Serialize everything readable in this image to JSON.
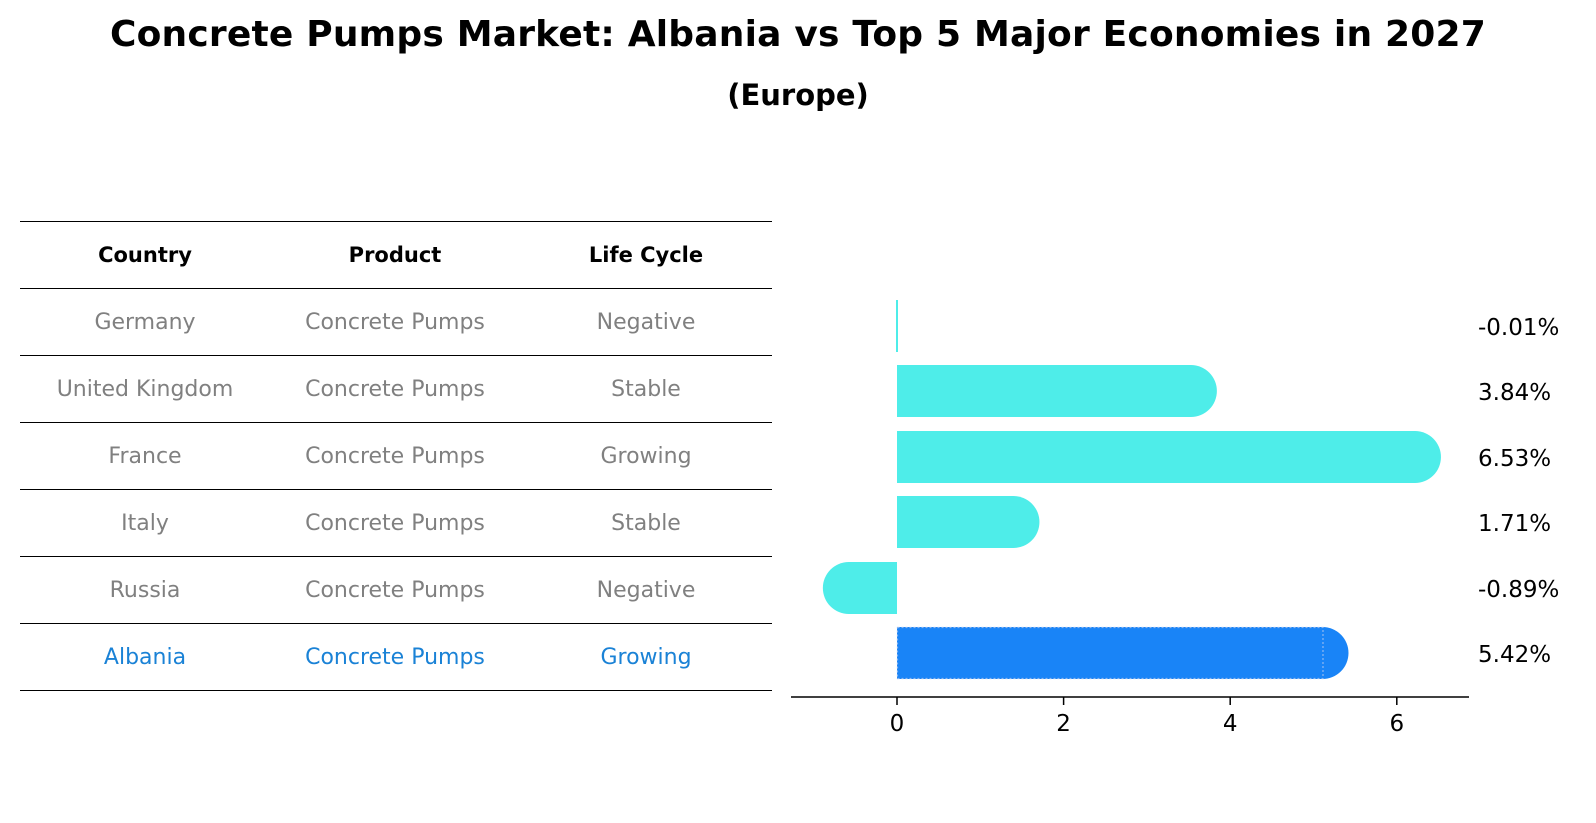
{
  "title": "Concrete Pumps Market: Albania vs Top 5 Major Economies in 2027",
  "subtitle": "(Europe)",
  "table": {
    "headers": [
      "Country",
      "Product",
      "Life Cycle"
    ],
    "rows": [
      [
        "Germany",
        "Concrete Pumps",
        "Negative"
      ],
      [
        "United Kingdom",
        "Concrete Pumps",
        "Stable"
      ],
      [
        "France",
        "Concrete Pumps",
        "Growing"
      ],
      [
        "Italy",
        "Concrete Pumps",
        "Stable"
      ],
      [
        "Russia",
        "Concrete Pumps",
        "Negative"
      ],
      [
        "Albania",
        "Concrete Pumps",
        "Growing"
      ]
    ],
    "highlight_row": 5
  },
  "colors": {
    "bar": "#4eede9",
    "highlight_bar": "#1984f7",
    "row_text": "#808080",
    "highlight_text": "#1a82d6"
  },
  "chart_data": {
    "type": "bar",
    "orientation": "horizontal",
    "categories": [
      "Germany",
      "United Kingdom",
      "France",
      "Italy",
      "Russia",
      "Albania"
    ],
    "values": [
      -0.01,
      3.84,
      6.53,
      1.71,
      -0.89,
      5.42
    ],
    "value_labels": [
      "-0.01%",
      "3.84%",
      "6.53%",
      "1.71%",
      "-0.89%",
      "5.42%"
    ],
    "highlight_index": 5,
    "xlim": [
      -1.25,
      6.9
    ],
    "xticks": [
      0,
      2,
      4,
      6
    ],
    "xtick_labels": [
      "0",
      "2",
      "4",
      "6"
    ],
    "grid": false
  }
}
